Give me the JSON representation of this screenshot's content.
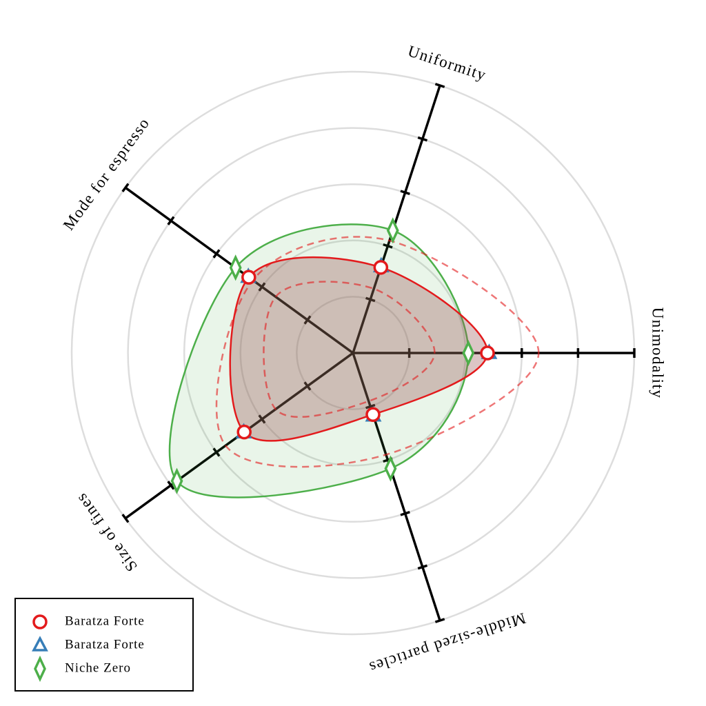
{
  "chart_data": {
    "type": "radar",
    "axes": [
      "Unimodality",
      "Uniformity",
      "Mode for espresso",
      "Size of fines",
      "Middle-sized particles"
    ],
    "rlim": [
      0,
      5
    ],
    "rticks": [
      1,
      2,
      3,
      4,
      5
    ],
    "grid": true,
    "legend": "lower left",
    "series": [
      {
        "name": "Baratza Forte",
        "color": "#e31a1c",
        "marker": "circle",
        "values": [
          2.39,
          1.6,
          2.29,
          2.39,
          1.15
        ],
        "lower": [
          1.45,
          1.2,
          1.7,
          1.7,
          0.9
        ],
        "upper": [
          3.3,
          2.1,
          2.2,
          2.8,
          1.9
        ]
      },
      {
        "name": "Baratza Forte",
        "color": "#377eb8",
        "marker": "triangle",
        "values": [
          2.42,
          1.62,
          2.3,
          2.4,
          1.17
        ]
      },
      {
        "name": "Niche Zero",
        "color": "#4daf4a",
        "marker": "diamond",
        "values": [
          2.05,
          2.29,
          2.58,
          3.87,
          2.16
        ]
      }
    ]
  }
}
